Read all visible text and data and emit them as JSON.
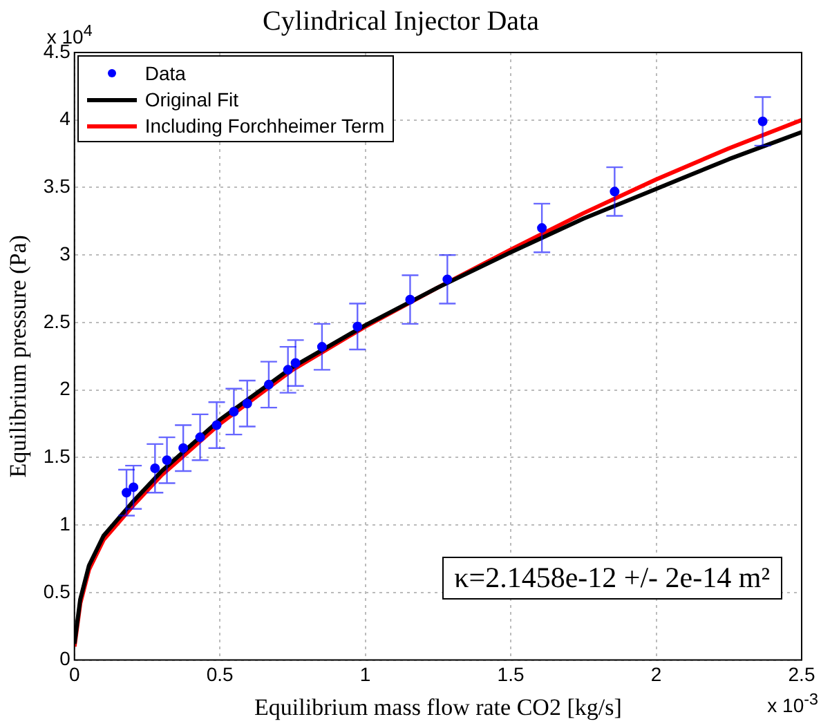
{
  "chart_data": {
    "type": "scatter",
    "title": "Cylindrical Injector Data",
    "xlabel": "Equilibrium mass flow rate CO2 [kg/s]",
    "ylabel": "Equilibrium pressure (Pa)",
    "xlim": [
      0,
      2.5
    ],
    "xticks": [
      0,
      0.5,
      1,
      1.5,
      2,
      2.5
    ],
    "ylim": [
      0,
      4.5
    ],
    "yticks": [
      0,
      0.5,
      1,
      1.5,
      2,
      2.5,
      3,
      3.5,
      4,
      4.5
    ],
    "grid": true,
    "legend": "top left",
    "annotations": [
      "x 10$^{4}$",
      "x 10$^{-3}$",
      "κ=2.1458e-12 +/- 2e-14 m²"
    ],
    "series": [
      {
        "name": "Data",
        "marker": "circle",
        "color": "#0000ff",
        "x": [
          0.179,
          0.203,
          0.277,
          0.318,
          0.374,
          0.432,
          0.489,
          0.548,
          0.594,
          0.668,
          0.734,
          0.76,
          0.851,
          0.973,
          1.154,
          1.282,
          1.607,
          1.857,
          2.366
        ],
        "values": [
          1.24,
          1.28,
          1.42,
          1.48,
          1.57,
          1.65,
          1.74,
          1.84,
          1.9,
          2.04,
          2.15,
          2.2,
          2.32,
          2.47,
          2.67,
          2.82,
          3.2,
          3.47,
          3.99
        ],
        "errors": [
          0.17,
          0.16,
          0.18,
          0.17,
          0.17,
          0.17,
          0.17,
          0.17,
          0.17,
          0.17,
          0.17,
          0.17,
          0.17,
          0.17,
          0.18,
          0.18,
          0.18,
          0.18,
          0.18
        ]
      },
      {
        "name": "Original Fit",
        "type": "line",
        "marker": "none",
        "color": "#000000",
        "x": [
          0,
          0.02,
          0.05,
          0.1,
          0.2,
          0.3,
          0.5,
          0.75,
          1,
          1.25,
          1.5,
          1.75,
          2,
          2.25,
          2.5
        ],
        "values": [
          0.12,
          0.45,
          0.7,
          0.92,
          1.17,
          1.4,
          1.78,
          2.17,
          2.48,
          2.76,
          3.02,
          3.27,
          3.49,
          3.71,
          3.91
        ]
      },
      {
        "name": "Including Forchheimer Term",
        "type": "line",
        "marker": "none",
        "color": "#ff0000",
        "x": [
          0,
          0.02,
          0.05,
          0.1,
          0.2,
          0.3,
          0.5,
          0.75,
          1,
          1.25,
          1.5,
          1.75,
          2,
          2.25,
          2.5
        ],
        "values": [
          0.1,
          0.42,
          0.67,
          0.89,
          1.14,
          1.37,
          1.75,
          2.15,
          2.47,
          2.76,
          3.04,
          3.31,
          3.56,
          3.79,
          4.0
        ]
      }
    ]
  }
}
